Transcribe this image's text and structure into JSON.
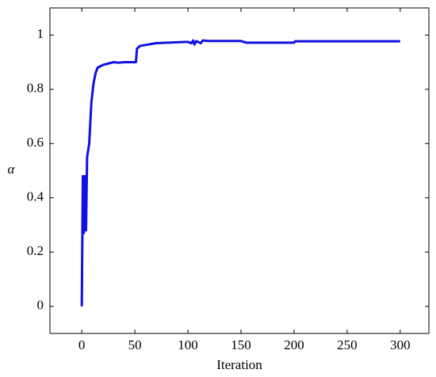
{
  "chart_data": {
    "type": "line",
    "x_label": "Iteration",
    "y_label": "α",
    "x": [
      0,
      1,
      2,
      3,
      4,
      5,
      7,
      9,
      11,
      13,
      15,
      20,
      30,
      35,
      40,
      50,
      51,
      52,
      55,
      70,
      100,
      103,
      105,
      106,
      108,
      112,
      114,
      120,
      150,
      155,
      200,
      201,
      300
    ],
    "series": [
      {
        "name": "α",
        "color": "#1010e0",
        "values": [
          0,
          0.48,
          0.27,
          0.48,
          0.28,
          0.55,
          0.6,
          0.75,
          0.82,
          0.86,
          0.88,
          0.89,
          0.9,
          0.898,
          0.9,
          0.9,
          0.9,
          0.95,
          0.96,
          0.97,
          0.975,
          0.97,
          0.98,
          0.965,
          0.978,
          0.97,
          0.98,
          0.978,
          0.978,
          0.972,
          0.972,
          0.977,
          0.977
        ]
      }
    ],
    "xlim": [
      -30,
      327
    ],
    "ylim": [
      -0.1,
      1.1
    ],
    "xticks": [
      0,
      50,
      100,
      150,
      200,
      250,
      300
    ],
    "yticks": [
      0,
      0.2,
      0.4,
      0.6,
      0.8,
      1
    ]
  }
}
